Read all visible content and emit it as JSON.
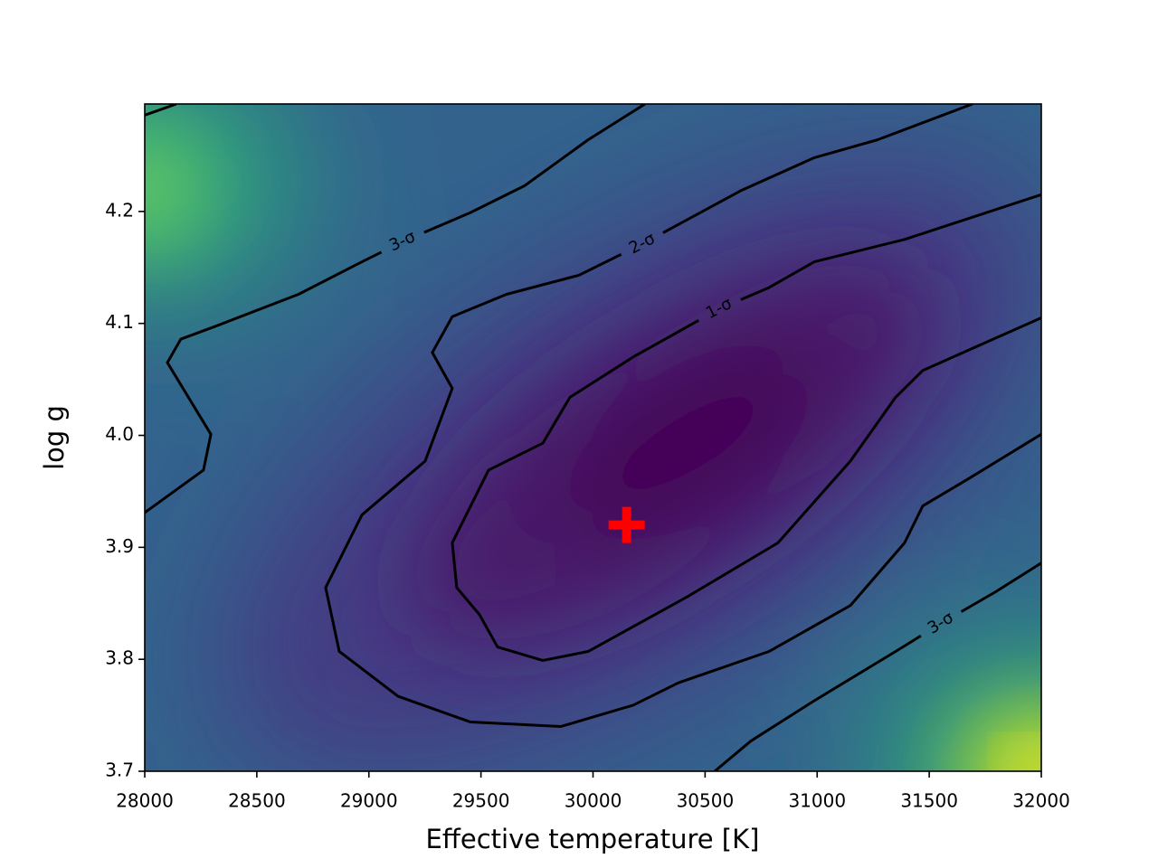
{
  "chart_data": {
    "type": "contour",
    "xlabel": "Effective temperature [K]",
    "ylabel": "log g",
    "xlim": [
      28000,
      32000
    ],
    "ylim": [
      3.7,
      4.296
    ],
    "xticks": [
      28000,
      28500,
      29000,
      29500,
      30000,
      30500,
      31000,
      31500,
      32000
    ],
    "yticks": [
      3.7,
      3.8,
      3.9,
      {
        "value": 4.0,
        "label": "4.0"
      },
      4.1,
      4.2
    ],
    "contour_color": "black",
    "contours": [
      {
        "label": "1-σ",
        "label_x": 30563,
        "label_y": 4.113,
        "x": [
          32000,
          31390,
          30987,
          30785,
          30563,
          30179,
          29897,
          29776,
          29534,
          29372,
          29392,
          29493,
          29574,
          29776,
          29978,
          30422,
          30825,
          31148,
          31350,
          31471,
          32000
        ],
        "y": [
          4.215,
          4.175,
          4.155,
          4.132,
          4.113,
          4.07,
          4.034,
          3.993,
          3.969,
          3.904,
          3.864,
          3.84,
          3.811,
          3.799,
          3.807,
          3.856,
          3.904,
          3.977,
          4.034,
          4.058,
          4.105
        ]
      },
      {
        "label": "2-σ",
        "label_x": 30220,
        "label_y": 4.171,
        "x": [
          31693,
          31269,
          30987,
          30664,
          30220,
          29937,
          29614,
          29372,
          29283,
          29372,
          29251,
          28969,
          28807,
          28868,
          29130,
          29453,
          29857,
          30179,
          30381,
          30785,
          31148,
          31390,
          31471,
          31673,
          32000
        ],
        "y": [
          4.296,
          4.264,
          4.248,
          4.219,
          4.171,
          4.143,
          4.126,
          4.106,
          4.074,
          4.042,
          3.977,
          3.929,
          3.864,
          3.807,
          3.767,
          3.744,
          3.74,
          3.759,
          3.779,
          3.807,
          3.848,
          3.904,
          3.937,
          3.961,
          4.001
        ]
      },
      {
        "label": "3-σ",
        "label_x": 29150,
        "label_y": 4.173,
        "x": [
          28000,
          28262,
          28295,
          28101,
          28161,
          28323,
          28686,
          28969,
          29150,
          29453,
          29695,
          29978,
          30232
        ],
        "y": [
          3.931,
          3.969,
          4.001,
          4.065,
          4.086,
          4.098,
          4.126,
          4.155,
          4.173,
          4.199,
          4.223,
          4.264,
          4.296
        ]
      },
      {
        "label": "3-σ",
        "label_x": 31552,
        "label_y": 3.832,
        "x": [
          30543,
          30704,
          30987,
          31350,
          31552,
          31794,
          32000
        ],
        "y": [
          3.7,
          3.727,
          3.763,
          3.807,
          3.832,
          3.86,
          3.886
        ]
      },
      {
        "x": [
          28000,
          28141
        ],
        "y": [
          4.286,
          4.296
        ]
      }
    ],
    "best_fit": {
      "x": 30150,
      "y": 3.92,
      "color": "red"
    }
  }
}
